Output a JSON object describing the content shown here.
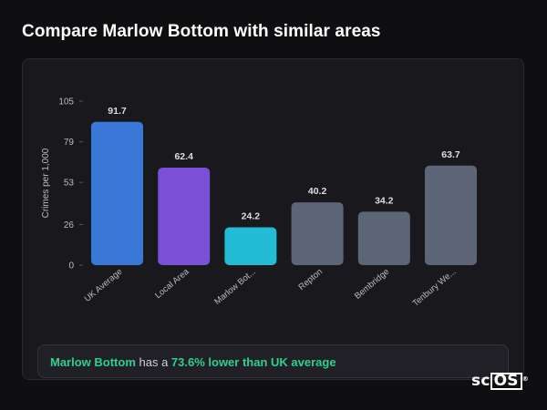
{
  "page": {
    "title": "Compare Marlow Bottom with similar areas",
    "logo_text_1": "sc",
    "logo_text_2": "OS",
    "logo_reg": "®"
  },
  "summary": {
    "area": "Marlow Bottom",
    "mid": " has a ",
    "comparison": "73.6% lower than UK average"
  },
  "colors": {
    "uk": "#3a78d8",
    "local": "#7a50d6",
    "selected": "#23bcd4",
    "other": "#5c6677",
    "highlight": "#2fcf8f"
  },
  "chart_data": {
    "type": "bar",
    "categories": [
      "UK Average",
      "Local Area",
      "Marlow Bot...",
      "Repton",
      "Bembridge",
      "Tenbury We..."
    ],
    "values": [
      91.7,
      62.4,
      24.2,
      40.2,
      34.2,
      63.7
    ],
    "value_labels": [
      "91.7",
      "62.4",
      "24.2",
      "40.2",
      "34.2",
      "63.7"
    ],
    "bar_colors": [
      "#3a78d8",
      "#7a50d6",
      "#23bcd4",
      "#5c6677",
      "#5c6677",
      "#5c6677"
    ],
    "ylabel": "Crimes per 1,000",
    "yticks": [
      0,
      26,
      53,
      79,
      105
    ],
    "ylim": [
      0,
      105
    ],
    "grid": false
  }
}
